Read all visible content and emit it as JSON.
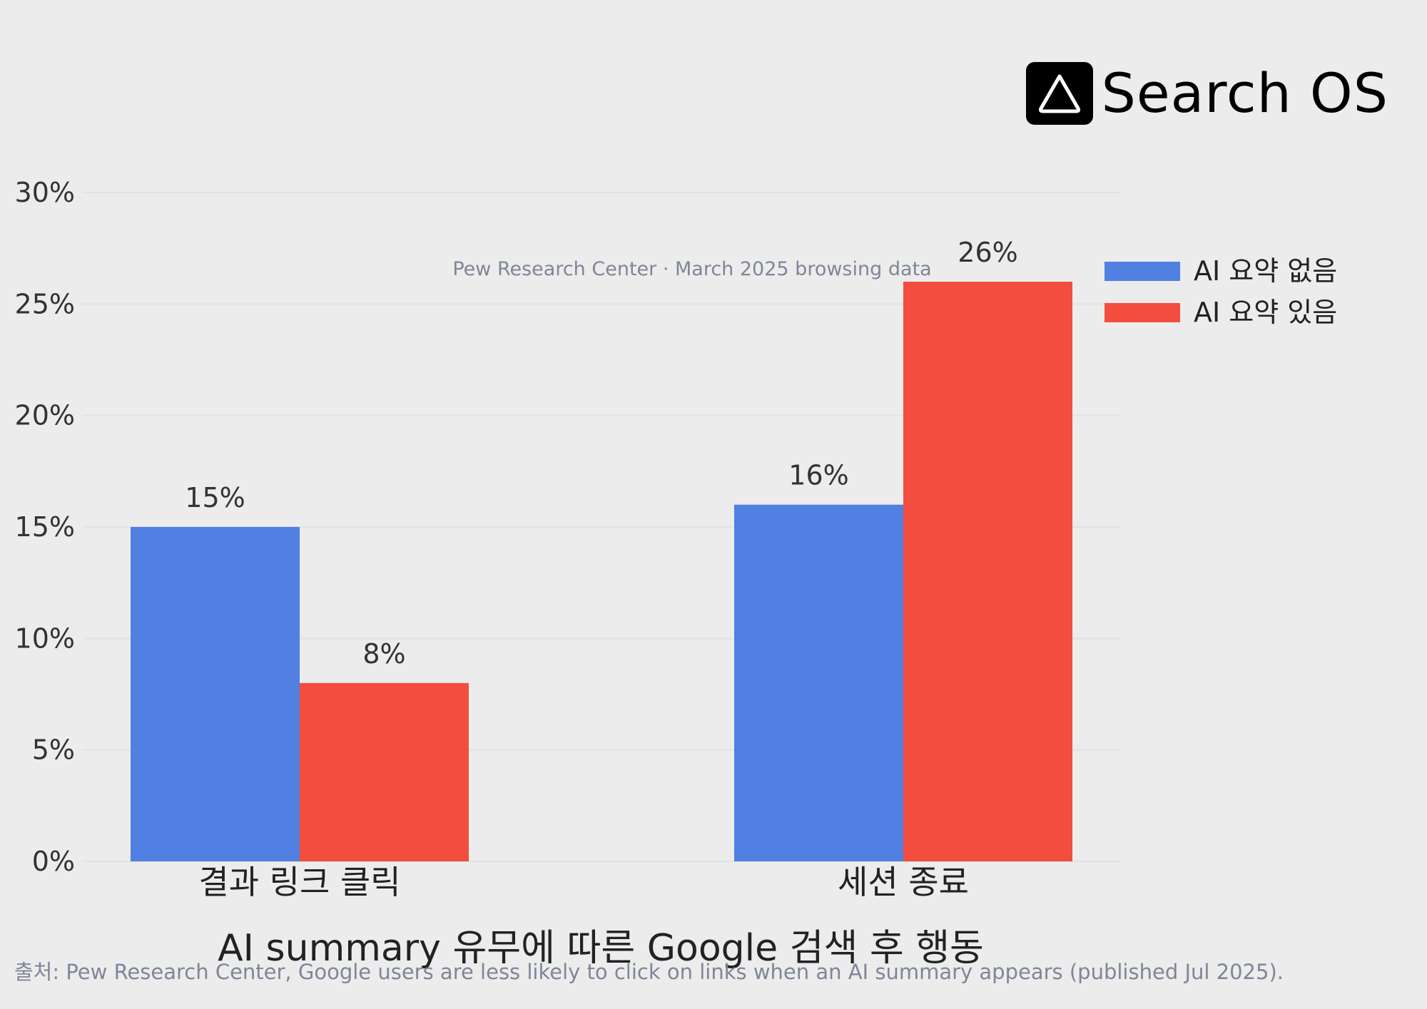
{
  "logo": {
    "text": "Search OS",
    "icon": "triangle-icon"
  },
  "chart_data": {
    "type": "bar",
    "title": "AI summary 유무에 따른 Google 검색 후 행동",
    "subtitle": "Pew Research Center · March 2025 browsing data",
    "categories": [
      "결과 링크 클릭",
      "세션 종료"
    ],
    "series": [
      {
        "name": "AI 요약 없음",
        "values": [
          15,
          16
        ],
        "labels": [
          "15%",
          "16%"
        ],
        "color": "#5080e1"
      },
      {
        "name": "AI 요약 있음",
        "values": [
          8,
          26
        ],
        "labels": [
          "8%",
          "26%"
        ],
        "color": "#f24d3e"
      }
    ],
    "ylim": [
      0,
      30
    ],
    "yticks": [
      0,
      5,
      10,
      15,
      20,
      25,
      30
    ],
    "yticklabels": [
      "0%",
      "5%",
      "10%",
      "15%",
      "20%",
      "25%",
      "30%"
    ],
    "grid": true,
    "legend": "top-right"
  },
  "footnote": "출처: Pew Research Center, Google users are less likely to click on links when an AI summary appears (published Jul 2025)."
}
